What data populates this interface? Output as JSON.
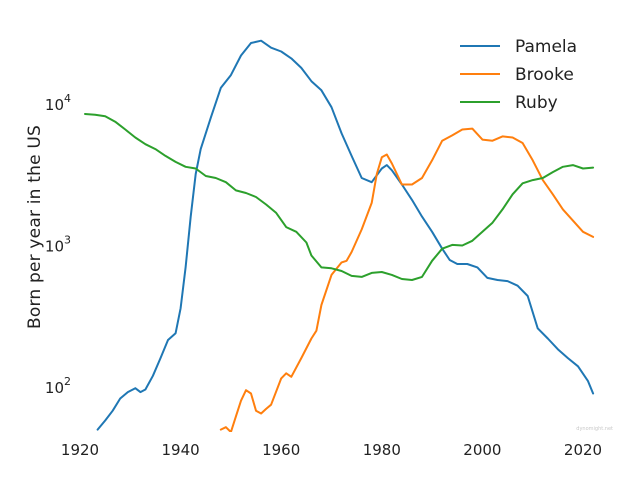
{
  "chart_data": {
    "type": "line",
    "title": "",
    "xlabel": "",
    "ylabel": "Born per year in the US",
    "yscale": "log",
    "xlim": [
      1920,
      2024
    ],
    "ylim": [
      50,
      45000
    ],
    "x_ticks": [
      {
        "value": 1920,
        "label": "1920"
      },
      {
        "value": 1940,
        "label": "1940"
      },
      {
        "value": 1960,
        "label": "1960"
      },
      {
        "value": 1980,
        "label": "1980"
      },
      {
        "value": 2000,
        "label": "2000"
      },
      {
        "value": 2020,
        "label": "2020"
      }
    ],
    "y_ticks": [
      {
        "value": 100,
        "base": "10",
        "exp": "2"
      },
      {
        "value": 1000,
        "base": "10",
        "exp": "3"
      },
      {
        "value": 10000,
        "base": "10",
        "exp": "4"
      }
    ],
    "grid": false,
    "legend_position": "top-right",
    "watermark": "dynomight.net",
    "series": [
      {
        "name": "Pamela",
        "color": "#1f77b4",
        "points": [
          [
            1923.5,
            50
          ],
          [
            1925,
            58
          ],
          [
            1926.5,
            68
          ],
          [
            1928,
            83
          ],
          [
            1929.5,
            92
          ],
          [
            1931,
            98
          ],
          [
            1932,
            92
          ],
          [
            1933,
            96
          ],
          [
            1934.5,
            120
          ],
          [
            1936,
            160
          ],
          [
            1937.5,
            215
          ],
          [
            1939,
            240
          ],
          [
            1940,
            360
          ],
          [
            1941,
            700
          ],
          [
            1942,
            1600
          ],
          [
            1943,
            3200
          ],
          [
            1944,
            4800
          ],
          [
            1946,
            8000
          ],
          [
            1948,
            13000
          ],
          [
            1950,
            16000
          ],
          [
            1952,
            22000
          ],
          [
            1954,
            27000
          ],
          [
            1956,
            28000
          ],
          [
            1958,
            25000
          ],
          [
            1960,
            23500
          ],
          [
            1962,
            21000
          ],
          [
            1964,
            18000
          ],
          [
            1966,
            14500
          ],
          [
            1968,
            12500
          ],
          [
            1970,
            9500
          ],
          [
            1972,
            6200
          ],
          [
            1974,
            4300
          ],
          [
            1976,
            3000
          ],
          [
            1978,
            2800
          ],
          [
            1980,
            3500
          ],
          [
            1981,
            3700
          ],
          [
            1982,
            3400
          ],
          [
            1984,
            2700
          ],
          [
            1986,
            2100
          ],
          [
            1988,
            1600
          ],
          [
            1990,
            1250
          ],
          [
            1992,
            950
          ],
          [
            1993.5,
            790
          ],
          [
            1995,
            740
          ],
          [
            1997,
            740
          ],
          [
            1999,
            700
          ],
          [
            2001,
            590
          ],
          [
            2003,
            570
          ],
          [
            2005,
            560
          ],
          [
            2007,
            520
          ],
          [
            2009,
            440
          ],
          [
            2011,
            260
          ],
          [
            2013,
            220
          ],
          [
            2015,
            185
          ],
          [
            2017,
            160
          ],
          [
            2019,
            140
          ],
          [
            2021,
            110
          ],
          [
            2022,
            90
          ]
        ]
      },
      {
        "name": "Brooke",
        "color": "#ff7f0e",
        "points": [
          [
            1948,
            50
          ],
          [
            1949,
            52
          ],
          [
            1950,
            48
          ],
          [
            1951,
            62
          ],
          [
            1952,
            80
          ],
          [
            1953,
            95
          ],
          [
            1954,
            90
          ],
          [
            1955,
            68
          ],
          [
            1956,
            65
          ],
          [
            1957,
            70
          ],
          [
            1958,
            75
          ],
          [
            1960,
            115
          ],
          [
            1961,
            125
          ],
          [
            1962,
            118
          ],
          [
            1964,
            160
          ],
          [
            1966,
            220
          ],
          [
            1967,
            250
          ],
          [
            1968,
            380
          ],
          [
            1970,
            620
          ],
          [
            1972,
            760
          ],
          [
            1973,
            780
          ],
          [
            1974,
            900
          ],
          [
            1976,
            1300
          ],
          [
            1978,
            2000
          ],
          [
            1979,
            3200
          ],
          [
            1980,
            4200
          ],
          [
            1981,
            4400
          ],
          [
            1982,
            3800
          ],
          [
            1984,
            2700
          ],
          [
            1986,
            2700
          ],
          [
            1988,
            3000
          ],
          [
            1990,
            4000
          ],
          [
            1992,
            5500
          ],
          [
            1994,
            6000
          ],
          [
            1996,
            6600
          ],
          [
            1998,
            6700
          ],
          [
            2000,
            5600
          ],
          [
            2002,
            5500
          ],
          [
            2004,
            5900
          ],
          [
            2006,
            5800
          ],
          [
            2008,
            5300
          ],
          [
            2010,
            4000
          ],
          [
            2012,
            2900
          ],
          [
            2014,
            2300
          ],
          [
            2016,
            1800
          ],
          [
            2018,
            1500
          ],
          [
            2020,
            1250
          ],
          [
            2022,
            1150
          ]
        ]
      },
      {
        "name": "Ruby",
        "color": "#2ca02c",
        "points": [
          [
            1921,
            8500
          ],
          [
            1923,
            8400
          ],
          [
            1925,
            8200
          ],
          [
            1927,
            7500
          ],
          [
            1929,
            6600
          ],
          [
            1931,
            5800
          ],
          [
            1933,
            5200
          ],
          [
            1935,
            4800
          ],
          [
            1937,
            4300
          ],
          [
            1939,
            3900
          ],
          [
            1941,
            3600
          ],
          [
            1943,
            3500
          ],
          [
            1945,
            3100
          ],
          [
            1947,
            3000
          ],
          [
            1949,
            2800
          ],
          [
            1951,
            2450
          ],
          [
            1953,
            2350
          ],
          [
            1955,
            2200
          ],
          [
            1957,
            1950
          ],
          [
            1959,
            1700
          ],
          [
            1961,
            1350
          ],
          [
            1963,
            1250
          ],
          [
            1965,
            1050
          ],
          [
            1966,
            850
          ],
          [
            1968,
            700
          ],
          [
            1970,
            690
          ],
          [
            1972,
            660
          ],
          [
            1974,
            610
          ],
          [
            1976,
            600
          ],
          [
            1978,
            640
          ],
          [
            1980,
            650
          ],
          [
            1982,
            620
          ],
          [
            1984,
            580
          ],
          [
            1986,
            570
          ],
          [
            1988,
            600
          ],
          [
            1990,
            780
          ],
          [
            1992,
            950
          ],
          [
            1994,
            1010
          ],
          [
            1996,
            1000
          ],
          [
            1998,
            1080
          ],
          [
            2000,
            1250
          ],
          [
            2002,
            1450
          ],
          [
            2004,
            1800
          ],
          [
            2006,
            2300
          ],
          [
            2008,
            2750
          ],
          [
            2010,
            2900
          ],
          [
            2012,
            3000
          ],
          [
            2014,
            3300
          ],
          [
            2016,
            3600
          ],
          [
            2018,
            3700
          ],
          [
            2020,
            3500
          ],
          [
            2022,
            3550
          ]
        ]
      }
    ]
  }
}
